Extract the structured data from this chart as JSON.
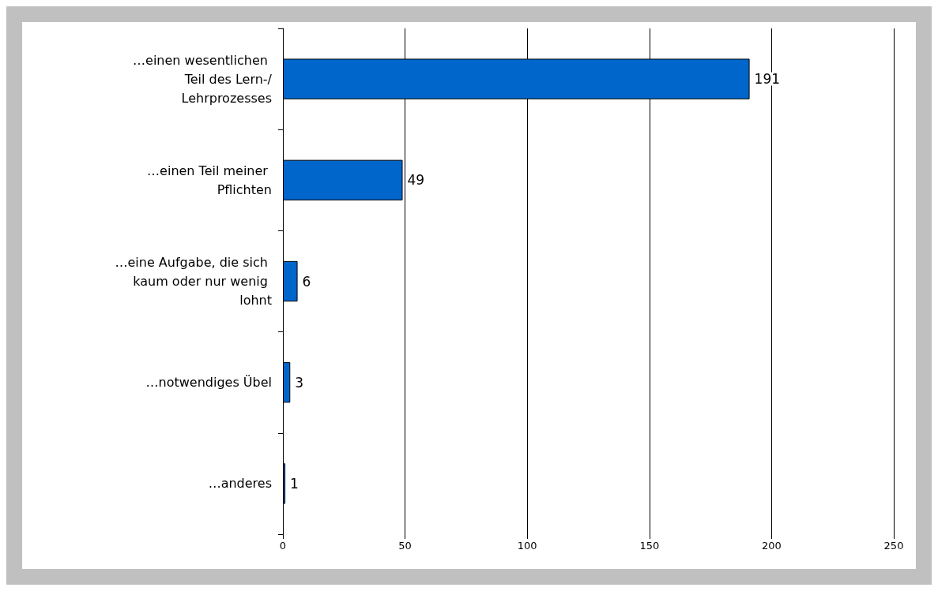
{
  "chart_data": {
    "type": "bar",
    "orientation": "horizontal",
    "categories": [
      "…einen wesentlichen Teil des Lern-/Lehrprozesses",
      "…einen Teil meiner Pflichten",
      "…eine Aufgabe, die sich kaum oder nur wenig lohnt",
      "…notwendiges Übel",
      "…anderes"
    ],
    "values": [
      191,
      49,
      6,
      3,
      1
    ],
    "color": "#0066cc",
    "xlim": [
      0,
      250
    ],
    "xticks": [
      0,
      50,
      100,
      150,
      200,
      250
    ],
    "grid": "x",
    "data_labels": true
  }
}
